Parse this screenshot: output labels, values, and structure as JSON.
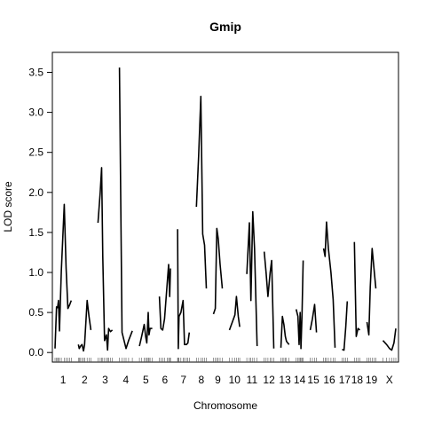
{
  "chart_data": {
    "type": "line",
    "title": "Gmip",
    "xlabel": "Chromosome",
    "ylabel": "LOD score",
    "ylim": [
      -0.12,
      3.75
    ],
    "y_ticks": [
      "0.0",
      "0.5",
      "1.0",
      "1.5",
      "2.0",
      "2.5",
      "3.0",
      "3.5"
    ],
    "y_tick_values": [
      0,
      0.5,
      1,
      1.5,
      2,
      2.5,
      3,
      3.5
    ],
    "grid": false,
    "legend": "none",
    "line_color": "#000000",
    "chromosomes": [
      {
        "label": "1",
        "points": [
          [
            0,
            0.05
          ],
          [
            8,
            0.57
          ],
          [
            14,
            0.56
          ],
          [
            19,
            0.65
          ],
          [
            24,
            0.27
          ],
          [
            34,
            1.02
          ],
          [
            50,
            1.85
          ],
          [
            60,
            1.05
          ],
          [
            70,
            0.55
          ],
          [
            80,
            0.6
          ],
          [
            88,
            0.65
          ]
        ]
      },
      {
        "label": "2",
        "points": [
          [
            0,
            0.1
          ],
          [
            5,
            0.05
          ],
          [
            12,
            0.08
          ],
          [
            20,
            0.1
          ],
          [
            28,
            0.02
          ],
          [
            34,
            0.1
          ],
          [
            48,
            0.65
          ],
          [
            58,
            0.45
          ],
          [
            68,
            0.28
          ]
        ]
      },
      {
        "label": "3",
        "points": [
          [
            0,
            1.62
          ],
          [
            12,
            2.0
          ],
          [
            20,
            2.31
          ],
          [
            26,
            1.2
          ],
          [
            36,
            0.15
          ],
          [
            46,
            0.22
          ],
          [
            52,
            0.03
          ],
          [
            58,
            0.3
          ],
          [
            68,
            0.26
          ],
          [
            78,
            0.28
          ]
        ]
      },
      {
        "label": "4",
        "points": [
          [
            0,
            3.56
          ],
          [
            14,
            0.25
          ],
          [
            26,
            0.14
          ],
          [
            36,
            0.05
          ],
          [
            50,
            0.15
          ],
          [
            70,
            0.27
          ]
        ]
      },
      {
        "label": "5",
        "points": [
          [
            0,
            0.08
          ],
          [
            12,
            0.2
          ],
          [
            26,
            0.35
          ],
          [
            34,
            0.2
          ],
          [
            40,
            0.12
          ],
          [
            48,
            0.5
          ],
          [
            52,
            0.22
          ],
          [
            58,
            0.3
          ],
          [
            70,
            0.3
          ]
        ]
      },
      {
        "label": "6",
        "points": [
          [
            0,
            0.7
          ],
          [
            8,
            0.3
          ],
          [
            18,
            0.28
          ],
          [
            28,
            0.42
          ],
          [
            42,
            0.85
          ],
          [
            50,
            1.1
          ],
          [
            56,
            0.7
          ],
          [
            60,
            1.05
          ]
        ]
      },
      {
        "label": "7",
        "points": [
          [
            0,
            1.54
          ],
          [
            4,
            0.05
          ],
          [
            8,
            0.45
          ],
          [
            18,
            0.5
          ],
          [
            30,
            0.65
          ],
          [
            38,
            0.1
          ],
          [
            48,
            0.1
          ],
          [
            56,
            0.12
          ],
          [
            64,
            0.25
          ]
        ]
      },
      {
        "label": "8",
        "points": [
          [
            0,
            1.82
          ],
          [
            12,
            2.45
          ],
          [
            24,
            3.2
          ],
          [
            34,
            1.48
          ],
          [
            44,
            1.34
          ],
          [
            54,
            0.8
          ]
        ]
      },
      {
        "label": "9",
        "points": [
          [
            0,
            0.48
          ],
          [
            10,
            0.55
          ],
          [
            18,
            1.55
          ],
          [
            26,
            1.42
          ],
          [
            36,
            1.1
          ],
          [
            48,
            0.8
          ]
        ]
      },
      {
        "label": "10",
        "points": [
          [
            0,
            0.28
          ],
          [
            16,
            0.38
          ],
          [
            30,
            0.47
          ],
          [
            38,
            0.7
          ],
          [
            48,
            0.45
          ],
          [
            56,
            0.32
          ]
        ]
      },
      {
        "label": "11",
        "points": [
          [
            0,
            0.98
          ],
          [
            14,
            1.62
          ],
          [
            22,
            0.65
          ],
          [
            32,
            1.76
          ],
          [
            42,
            1.3
          ],
          [
            56,
            0.08
          ]
        ]
      },
      {
        "label": "12",
        "points": [
          [
            0,
            1.26
          ],
          [
            10,
            1.0
          ],
          [
            20,
            0.7
          ],
          [
            32,
            1.0
          ],
          [
            40,
            1.15
          ],
          [
            52,
            0.05
          ]
        ]
      },
      {
        "label": "13",
        "points": [
          [
            0,
            0.06
          ],
          [
            8,
            0.45
          ],
          [
            16,
            0.35
          ],
          [
            24,
            0.2
          ],
          [
            30,
            0.14
          ],
          [
            44,
            0.1
          ]
        ]
      },
      {
        "label": "14",
        "points": [
          [
            0,
            0.54
          ],
          [
            10,
            0.45
          ],
          [
            16,
            0.1
          ],
          [
            22,
            0.5
          ],
          [
            26,
            0.05
          ],
          [
            32,
            0.47
          ],
          [
            38,
            1.15
          ]
        ]
      },
      {
        "label": "15",
        "points": [
          [
            0,
            0.28
          ],
          [
            12,
            0.42
          ],
          [
            24,
            0.6
          ],
          [
            34,
            0.25
          ]
        ]
      },
      {
        "label": "16",
        "points": [
          [
            0,
            1.3
          ],
          [
            8,
            1.2
          ],
          [
            16,
            1.63
          ],
          [
            26,
            1.3
          ],
          [
            40,
            1.0
          ],
          [
            52,
            0.66
          ],
          [
            62,
            0.06
          ]
        ]
      },
      {
        "label": "17",
        "points": [
          [
            0,
            0.04
          ],
          [
            10,
            0.03
          ],
          [
            20,
            0.32
          ],
          [
            28,
            0.64
          ]
        ]
      },
      {
        "label": "18",
        "points": [
          [
            0,
            1.38
          ],
          [
            10,
            0.2
          ],
          [
            20,
            0.3
          ],
          [
            30,
            0.28
          ]
        ]
      },
      {
        "label": "19",
        "points": [
          [
            0,
            0.38
          ],
          [
            10,
            0.22
          ],
          [
            18,
            0.82
          ],
          [
            28,
            1.3
          ],
          [
            40,
            1.0
          ],
          [
            48,
            0.8
          ]
        ]
      },
      {
        "label": "X",
        "points": [
          [
            0,
            0.15
          ],
          [
            20,
            0.1
          ],
          [
            36,
            0.05
          ],
          [
            48,
            0.03
          ],
          [
            60,
            0.12
          ],
          [
            70,
            0.3
          ]
        ]
      }
    ]
  }
}
